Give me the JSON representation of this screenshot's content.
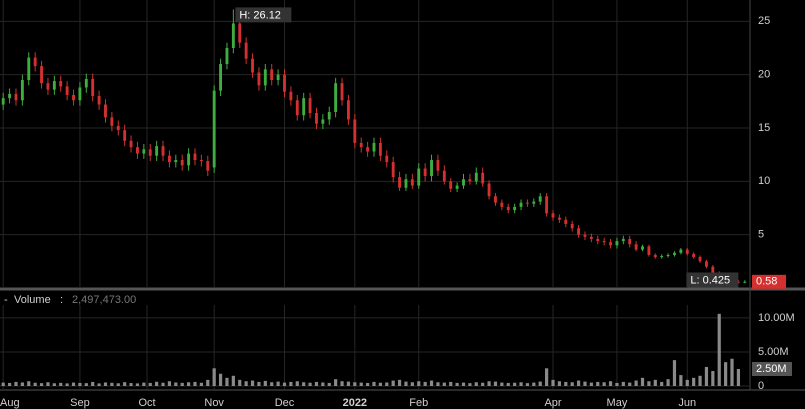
{
  "chart_data": [
    {
      "type": "candlestick",
      "up_color": "#3fae3f",
      "down_color": "#d43030",
      "grid": true,
      "xlim": [
        -0.5,
        116.5
      ],
      "xticks": [
        {
          "value": 0,
          "label": "Aug"
        },
        {
          "value": 12,
          "label": "Sep"
        },
        {
          "value": 22.5,
          "label": "Oct"
        },
        {
          "value": 33,
          "label": "Nov"
        },
        {
          "value": 44,
          "label": "Dec"
        },
        {
          "value": 55,
          "label": "2022"
        },
        {
          "value": 65,
          "label": "Feb"
        },
        {
          "value": 86,
          "label": "Apr"
        },
        {
          "value": 96,
          "label": "May"
        },
        {
          "value": 107,
          "label": "Jun"
        }
      ],
      "ylim": [
        0,
        27
      ],
      "yticks": [
        5,
        10,
        15,
        20,
        25
      ],
      "open": [
        17.2,
        17.8,
        18.2,
        17.6,
        19.5,
        21.6,
        20.8,
        19.2,
        18.6,
        19.4,
        18.9,
        18.1,
        17.6,
        18.8,
        19.6,
        18.0,
        17.2,
        16.0,
        15.2,
        14.8,
        13.8,
        13.2,
        12.6,
        13.0,
        12.4,
        13.3,
        12.4,
        11.8,
        12.0,
        11.5,
        12.6,
        12.0,
        11.9,
        11.3,
        18.5,
        21.0,
        22.5,
        24.8,
        23.0,
        21.5,
        20.2,
        19.0,
        20.5,
        19.5,
        20.0,
        18.4,
        17.6,
        16.2,
        17.8,
        16.4,
        15.4,
        15.8,
        16.5,
        19.2,
        17.6,
        15.8,
        13.6,
        13.2,
        12.8,
        13.6,
        12.4,
        11.8,
        10.4,
        9.4,
        10.2,
        9.6,
        11.2,
        10.5,
        12.0,
        11.0,
        10.0,
        9.3,
        9.6,
        10.2,
        10.0,
        10.8,
        9.8,
        8.6,
        8.0,
        7.6,
        7.3,
        7.6,
        8.0,
        7.9,
        8.1,
        8.6,
        7.0,
        6.6,
        6.4,
        6.0,
        5.6,
        5.0,
        4.8,
        4.6,
        4.4,
        4.3,
        4.0,
        4.4,
        4.6,
        4.1,
        3.6,
        3.9,
        3.1,
        2.9,
        3.0,
        3.1,
        3.3,
        3.6,
        3.2,
        2.9,
        2.5,
        2.0,
        1.4,
        1.0,
        0.9,
        0.6,
        0.5
      ],
      "high": [
        18.3,
        18.7,
        18.7,
        20.0,
        22.1,
        22.1,
        21.3,
        19.7,
        19.9,
        19.9,
        19.4,
        18.6,
        19.3,
        20.1,
        20.1,
        18.5,
        17.7,
        16.5,
        15.7,
        15.3,
        14.3,
        13.7,
        13.5,
        13.5,
        13.8,
        13.8,
        12.9,
        12.5,
        12.5,
        13.1,
        13.1,
        12.5,
        12.4,
        19.0,
        21.5,
        23.0,
        26.12,
        25.3,
        23.5,
        22.0,
        20.7,
        21.0,
        21.0,
        20.5,
        20.5,
        18.9,
        18.1,
        18.3,
        18.3,
        16.9,
        16.3,
        17.0,
        19.7,
        19.7,
        18.1,
        16.3,
        14.1,
        13.7,
        14.1,
        14.1,
        12.9,
        12.3,
        10.9,
        10.7,
        10.7,
        11.7,
        11.7,
        12.5,
        12.5,
        11.5,
        10.3,
        9.9,
        10.7,
        10.7,
        11.3,
        11.3,
        10.1,
        8.9,
        8.3,
        7.9,
        7.9,
        8.3,
        8.3,
        8.4,
        8.9,
        8.9,
        7.3,
        6.9,
        6.7,
        6.3,
        5.9,
        5.3,
        5.1,
        4.9,
        4.7,
        4.6,
        4.7,
        4.9,
        4.9,
        4.4,
        4.05,
        4.05,
        3.25,
        3.15,
        3.25,
        3.45,
        3.75,
        3.75,
        3.35,
        3.05,
        2.65,
        2.15,
        1.55,
        1.15,
        1.05,
        0.75,
        0.73
      ],
      "low": [
        16.7,
        17.3,
        17.1,
        17.1,
        19.0,
        20.3,
        18.7,
        18.1,
        18.1,
        18.4,
        17.6,
        17.1,
        17.1,
        18.3,
        17.5,
        16.7,
        15.5,
        14.7,
        14.3,
        13.3,
        12.7,
        12.1,
        12.1,
        11.9,
        11.9,
        11.9,
        11.3,
        11.3,
        11.0,
        11.0,
        11.5,
        11.4,
        10.5,
        10.8,
        18.0,
        20.5,
        22.0,
        22.5,
        21.0,
        19.7,
        18.5,
        18.5,
        19.0,
        19.0,
        17.9,
        17.1,
        15.7,
        15.7,
        15.9,
        14.9,
        14.9,
        15.3,
        16.0,
        17.1,
        15.3,
        13.1,
        12.7,
        12.3,
        12.3,
        11.9,
        11.3,
        9.9,
        9.1,
        9.1,
        9.3,
        9.3,
        10.0,
        10.0,
        10.5,
        9.7,
        9.0,
        9.0,
        9.3,
        9.7,
        9.7,
        9.5,
        8.3,
        7.7,
        7.3,
        7.0,
        7.0,
        7.3,
        7.6,
        7.6,
        7.8,
        6.7,
        6.3,
        6.1,
        5.7,
        5.3,
        4.7,
        4.5,
        4.3,
        4.1,
        4.0,
        3.7,
        3.7,
        4.1,
        3.8,
        3.45,
        3.45,
        2.95,
        2.75,
        2.75,
        2.85,
        2.95,
        3.15,
        3.05,
        2.75,
        2.35,
        1.85,
        1.25,
        0.85,
        0.75,
        0.45,
        0.425,
        0.45
      ],
      "close": [
        17.8,
        18.2,
        17.6,
        19.5,
        21.6,
        20.8,
        19.2,
        18.6,
        19.4,
        18.9,
        18.1,
        17.6,
        18.8,
        19.6,
        18.0,
        17.2,
        16.0,
        15.2,
        14.8,
        13.8,
        13.2,
        12.6,
        13.0,
        12.4,
        13.3,
        12.4,
        11.8,
        12.0,
        11.5,
        12.6,
        12.0,
        11.9,
        11.0,
        18.5,
        21.0,
        22.5,
        24.8,
        23.0,
        21.5,
        20.2,
        19.0,
        20.5,
        19.5,
        20.0,
        18.4,
        17.6,
        16.2,
        17.8,
        16.4,
        15.4,
        15.8,
        16.5,
        19.2,
        17.6,
        15.8,
        13.6,
        13.2,
        12.8,
        13.6,
        12.4,
        11.8,
        10.4,
        9.4,
        10.2,
        9.6,
        11.2,
        10.5,
        12.0,
        11.0,
        10.0,
        9.3,
        9.6,
        10.2,
        10.0,
        10.8,
        9.8,
        8.6,
        8.0,
        7.6,
        7.3,
        7.6,
        8.0,
        7.9,
        8.1,
        8.6,
        7.0,
        6.6,
        6.4,
        6.0,
        5.6,
        5.0,
        4.8,
        4.6,
        4.4,
        4.3,
        4.0,
        4.4,
        4.6,
        4.1,
        3.6,
        3.9,
        3.1,
        2.9,
        3.0,
        3.1,
        3.3,
        3.6,
        3.2,
        2.9,
        2.5,
        2.0,
        1.4,
        1.0,
        0.9,
        0.6,
        0.5,
        0.58
      ],
      "high_label": "H: 26.12",
      "low_label": "L: 0.425",
      "last_label": "0.58"
    },
    {
      "type": "volume",
      "title": "Volume",
      "color": "#8a8a8a",
      "grid": true,
      "ylim": [
        0,
        11900000
      ],
      "yticks": [
        0,
        {
          "value": 5000000,
          "label": "5.00M"
        },
        {
          "value": 10000000,
          "label": "10.00M"
        }
      ],
      "values": [
        500000,
        450000,
        600000,
        520000,
        700000,
        480000,
        420000,
        550000,
        400000,
        460000,
        380000,
        500000,
        450000,
        420000,
        600000,
        380000,
        520000,
        470000,
        400000,
        560000,
        430000,
        380000,
        500000,
        450000,
        620000,
        480000,
        700000,
        520000,
        460000,
        550000,
        600000,
        480000,
        900000,
        2600000,
        1800000,
        1200000,
        1500000,
        900000,
        700000,
        800000,
        600000,
        750000,
        550000,
        650000,
        500000,
        600000,
        700000,
        550000,
        480000,
        600000,
        520000,
        450000,
        1000000,
        700000,
        650000,
        550000,
        500000,
        450000,
        600000,
        480000,
        520000,
        800000,
        900000,
        650000,
        550000,
        700000,
        600000,
        800000,
        550000,
        500000,
        600000,
        450000,
        500000,
        420000,
        550000,
        480000,
        700000,
        650000,
        500000,
        450000,
        480000,
        550000,
        420000,
        500000,
        650000,
        2600000,
        900000,
        700000,
        600000,
        550000,
        800000,
        650000,
        500000,
        600000,
        550000,
        700000,
        450000,
        600000,
        500000,
        800000,
        1200000,
        700000,
        900000,
        600000,
        1000000,
        3800000,
        1600000,
        900000,
        1200000,
        1500000,
        2800000,
        2200000,
        10600000,
        3500000,
        4000000,
        2497473
      ],
      "readout_label": "2,497,473.00",
      "marker_label": "2.50M"
    }
  ]
}
